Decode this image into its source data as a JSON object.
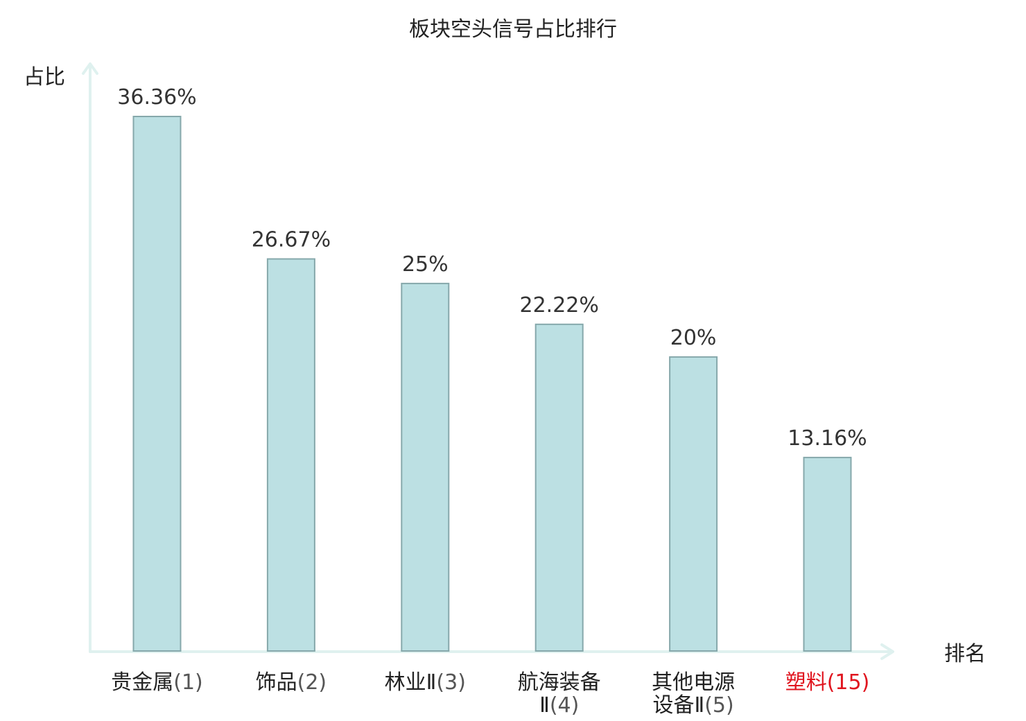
{
  "chart_data": {
    "type": "bar",
    "title": "板块空头信号占比排行",
    "ylabel": "占比",
    "xlabel": "排名",
    "categories": [
      {
        "name_lines": [
          "贵金属"
        ],
        "rank": "(1)",
        "rank_line": 0,
        "highlight": false
      },
      {
        "name_lines": [
          "饰品"
        ],
        "rank": "(2)",
        "rank_line": 0,
        "highlight": false
      },
      {
        "name_lines": [
          "林业Ⅱ"
        ],
        "rank": "(3)",
        "rank_line": 0,
        "highlight": false
      },
      {
        "name_lines": [
          "航海装备",
          "Ⅱ"
        ],
        "rank": "(4)",
        "rank_line": 1,
        "highlight": false
      },
      {
        "name_lines": [
          "其他电源",
          "设备Ⅱ"
        ],
        "rank": "(5)",
        "rank_line": 1,
        "highlight": false
      },
      {
        "name_lines": [
          "塑料"
        ],
        "rank": "(15)",
        "rank_line": 0,
        "highlight": true
      }
    ],
    "values": [
      36.36,
      26.67,
      25,
      22.22,
      20,
      13.16
    ],
    "value_labels": [
      "36.36%",
      "26.67%",
      "25%",
      "22.22%",
      "20%",
      "13.16%"
    ],
    "ylim": [
      0,
      36.36
    ],
    "grid": false,
    "colors": {
      "bar_fill": "#bce0e3",
      "bar_stroke": "#86a8ab",
      "axis": "#dff1ef",
      "highlight": "#e0141e"
    }
  }
}
